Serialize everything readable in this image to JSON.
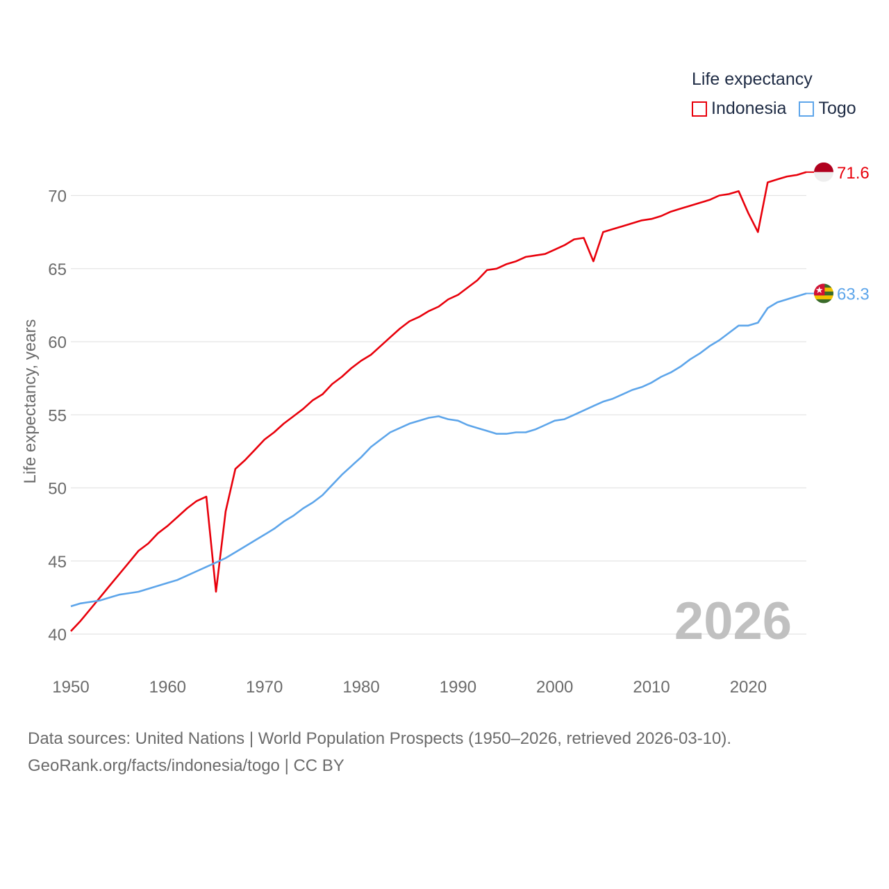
{
  "legend": {
    "title": "Life expectancy"
  },
  "source": {
    "line1": "Data sources: United Nations | World Population Prospects (1950–2026, retrieved 2026-03-10).",
    "line2": "GeoRank.org/facts/indonesia/togo | CC BY"
  },
  "chart_data": {
    "type": "line",
    "title": "",
    "xlabel": "",
    "ylabel": "Life expectancy, years",
    "xlim": [
      1950,
      2026
    ],
    "ylim": [
      40,
      72
    ],
    "x_ticks": [
      1950,
      1960,
      1970,
      1980,
      1990,
      2000,
      2010,
      2020
    ],
    "y_ticks": [
      40,
      45,
      50,
      55,
      60,
      65,
      70
    ],
    "grid": true,
    "year_label": "2026",
    "series": [
      {
        "name": "Indonesia",
        "color": "#e8000b",
        "end_label": "71.6",
        "flag_icon": "indonesia-flag-icon",
        "x": [
          1950,
          1951,
          1952,
          1953,
          1954,
          1955,
          1956,
          1957,
          1958,
          1959,
          1960,
          1961,
          1962,
          1963,
          1964,
          1965,
          1966,
          1967,
          1968,
          1969,
          1970,
          1971,
          1972,
          1973,
          1974,
          1975,
          1976,
          1977,
          1978,
          1979,
          1980,
          1981,
          1982,
          1983,
          1984,
          1985,
          1986,
          1987,
          1988,
          1989,
          1990,
          1991,
          1992,
          1993,
          1994,
          1995,
          1996,
          1997,
          1998,
          1999,
          2000,
          2001,
          2002,
          2003,
          2004,
          2005,
          2006,
          2007,
          2008,
          2009,
          2010,
          2011,
          2012,
          2013,
          2014,
          2015,
          2016,
          2017,
          2018,
          2019,
          2020,
          2021,
          2022,
          2023,
          2024,
          2025,
          2026
        ],
        "y": [
          40.2,
          40.9,
          41.7,
          42.5,
          43.3,
          44.1,
          44.9,
          45.7,
          46.2,
          46.9,
          47.4,
          48.0,
          48.6,
          49.1,
          49.4,
          42.9,
          48.4,
          51.3,
          51.9,
          52.6,
          53.3,
          53.8,
          54.4,
          54.9,
          55.4,
          56.0,
          56.4,
          57.1,
          57.6,
          58.2,
          58.7,
          59.1,
          59.7,
          60.3,
          60.9,
          61.4,
          61.7,
          62.1,
          62.4,
          62.9,
          63.2,
          63.7,
          64.2,
          64.9,
          65.0,
          65.3,
          65.5,
          65.8,
          65.9,
          66.0,
          66.3,
          66.6,
          67.0,
          67.1,
          65.5,
          67.5,
          67.7,
          67.9,
          68.1,
          68.3,
          68.4,
          68.6,
          68.9,
          69.1,
          69.3,
          69.5,
          69.7,
          70.0,
          70.1,
          70.3,
          68.8,
          67.5,
          70.9,
          71.1,
          71.3,
          71.4,
          71.6
        ]
      },
      {
        "name": "Togo",
        "color": "#5da5ea",
        "end_label": "63.3",
        "flag_icon": "togo-flag-icon",
        "x": [
          1950,
          1951,
          1952,
          1953,
          1954,
          1955,
          1956,
          1957,
          1958,
          1959,
          1960,
          1961,
          1962,
          1963,
          1964,
          1965,
          1966,
          1967,
          1968,
          1969,
          1970,
          1971,
          1972,
          1973,
          1974,
          1975,
          1976,
          1977,
          1978,
          1979,
          1980,
          1981,
          1982,
          1983,
          1984,
          1985,
          1986,
          1987,
          1988,
          1989,
          1990,
          1991,
          1992,
          1993,
          1994,
          1995,
          1996,
          1997,
          1998,
          1999,
          2000,
          2001,
          2002,
          2003,
          2004,
          2005,
          2006,
          2007,
          2008,
          2009,
          2010,
          2011,
          2012,
          2013,
          2014,
          2015,
          2016,
          2017,
          2018,
          2019,
          2020,
          2021,
          2022,
          2023,
          2024,
          2025,
          2026
        ],
        "y": [
          41.9,
          42.1,
          42.2,
          42.3,
          42.5,
          42.7,
          42.8,
          42.9,
          43.1,
          43.3,
          43.5,
          43.7,
          44.0,
          44.3,
          44.6,
          44.9,
          45.2,
          45.6,
          46.0,
          46.4,
          46.8,
          47.2,
          47.7,
          48.1,
          48.6,
          49.0,
          49.5,
          50.2,
          50.9,
          51.5,
          52.1,
          52.8,
          53.3,
          53.8,
          54.1,
          54.4,
          54.6,
          54.8,
          54.9,
          54.7,
          54.6,
          54.3,
          54.1,
          53.9,
          53.7,
          53.7,
          53.8,
          53.8,
          54.0,
          54.3,
          54.6,
          54.7,
          55.0,
          55.3,
          55.6,
          55.9,
          56.1,
          56.4,
          56.7,
          56.9,
          57.2,
          57.6,
          57.9,
          58.3,
          58.8,
          59.2,
          59.7,
          60.1,
          60.6,
          61.1,
          61.1,
          61.3,
          62.3,
          62.7,
          62.9,
          63.1,
          63.3
        ]
      }
    ]
  }
}
